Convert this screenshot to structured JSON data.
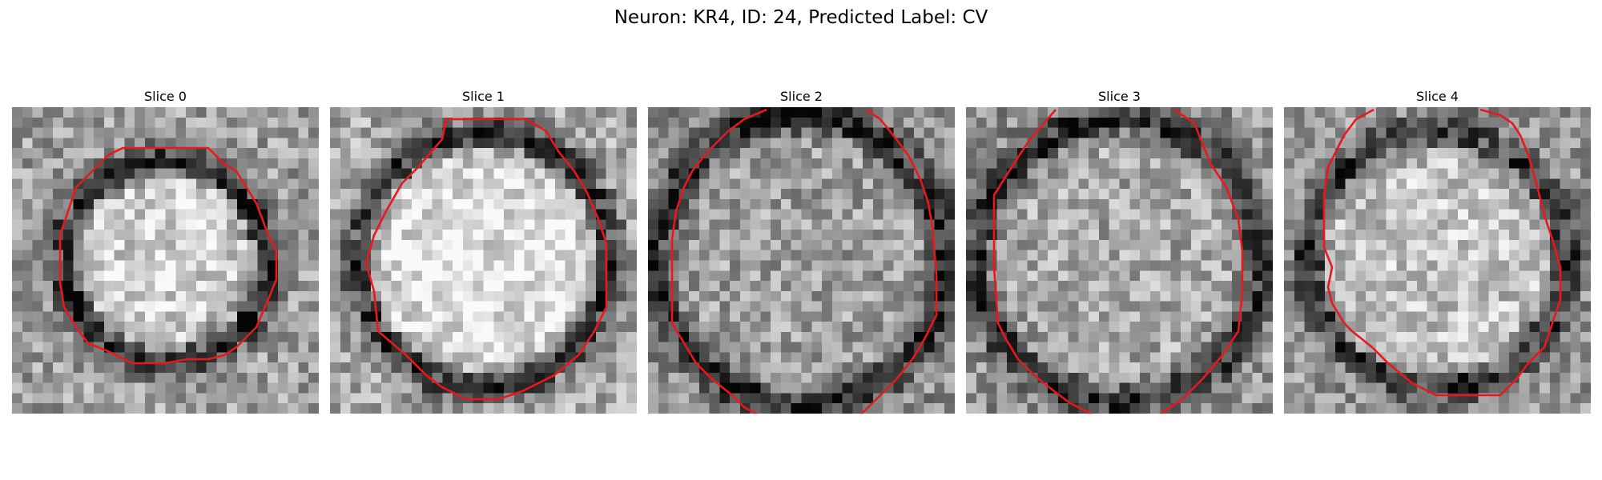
{
  "figure": {
    "title": "Neuron: KR4, ID: 24, Predicted Label: CV"
  },
  "panels": [
    {
      "title": "Slice 0",
      "seed": 11,
      "brightness": 0.62,
      "ring_darkness": 0.52,
      "center_bright": 0.2,
      "radius": 0.33
    },
    {
      "title": "Slice 1",
      "seed": 23,
      "brightness": 0.66,
      "ring_darkness": 0.55,
      "center_bright": 0.22,
      "radius": 0.41
    },
    {
      "title": "Slice 2",
      "seed": 37,
      "brightness": 0.56,
      "ring_darkness": 0.45,
      "center_bright": 0.06,
      "radius": 0.47
    },
    {
      "title": "Slice 3",
      "seed": 41,
      "brightness": 0.58,
      "ring_darkness": 0.48,
      "center_bright": 0.08,
      "radius": 0.46
    },
    {
      "title": "Slice 4",
      "seed": 53,
      "brightness": 0.6,
      "ring_darkness": 0.42,
      "center_bright": 0.16,
      "radius": 0.42
    }
  ],
  "style": {
    "contour_color": "#e8191b"
  }
}
